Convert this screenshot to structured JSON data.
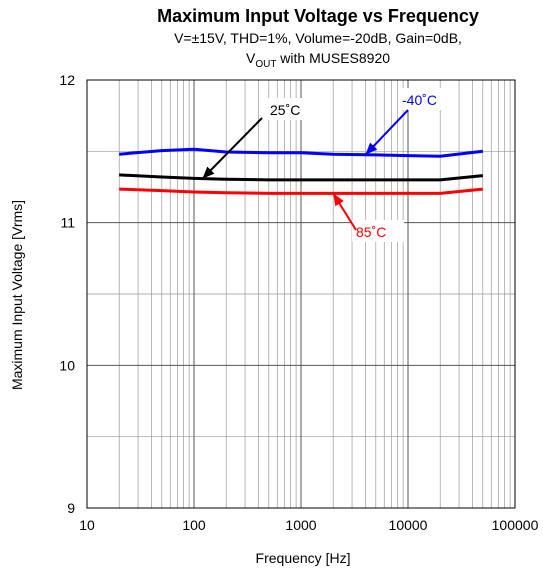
{
  "chart_data": {
    "type": "line",
    "title": "Maximum Input Voltage vs Frequency",
    "subtitle_line1": "V=±15V, THD=1%, Volume=-20dB, Gain=0dB,",
    "subtitle_line2_prefix": "V",
    "subtitle_line2_sub": "OUT",
    "subtitle_line2_suffix": " with MUSES8920",
    "xlabel": "Frequency [Hz]",
    "ylabel": "Maximum Input Voltage [Vrms]",
    "x_scale": "log",
    "xlim": [
      10,
      100000
    ],
    "ylim": [
      9,
      12
    ],
    "x_ticks": [
      10,
      100,
      1000,
      10000,
      100000
    ],
    "x_tick_labels": [
      "10",
      "100",
      "1000",
      "10000",
      "100000"
    ],
    "y_ticks": [
      9,
      10,
      11,
      12
    ],
    "y_tick_labels": [
      "9",
      "10",
      "11",
      "12"
    ],
    "grid": true,
    "series": [
      {
        "name": "-40˚C",
        "color": "#0000ff",
        "x": [
          20,
          50,
          100,
          200,
          500,
          1000,
          2000,
          5000,
          10000,
          20000,
          50000
        ],
        "y": [
          11.48,
          11.505,
          11.515,
          11.495,
          11.49,
          11.49,
          11.48,
          11.475,
          11.47,
          11.465,
          11.5
        ]
      },
      {
        "name": "25˚C",
        "color": "#000000",
        "x": [
          20,
          50,
          100,
          200,
          500,
          1000,
          2000,
          5000,
          10000,
          20000,
          50000
        ],
        "y": [
          11.335,
          11.32,
          11.31,
          11.305,
          11.3,
          11.3,
          11.3,
          11.3,
          11.3,
          11.3,
          11.33
        ]
      },
      {
        "name": "85˚C",
        "color": "#ff0000",
        "x": [
          20,
          50,
          100,
          200,
          500,
          1000,
          2000,
          5000,
          10000,
          20000,
          50000
        ],
        "y": [
          11.235,
          11.225,
          11.215,
          11.21,
          11.205,
          11.205,
          11.205,
          11.205,
          11.205,
          11.205,
          11.235
        ]
      }
    ],
    "annotations": [
      {
        "label": "25˚C",
        "color": "#000000",
        "series": "25˚C",
        "target_x": 120
      },
      {
        "label": "-40˚C",
        "color": "#0000ff",
        "series": "-40˚C",
        "target_x": 4000
      },
      {
        "label": "85˚C",
        "color": "#ff0000",
        "series": "85˚C",
        "target_x": 2000
      }
    ]
  }
}
